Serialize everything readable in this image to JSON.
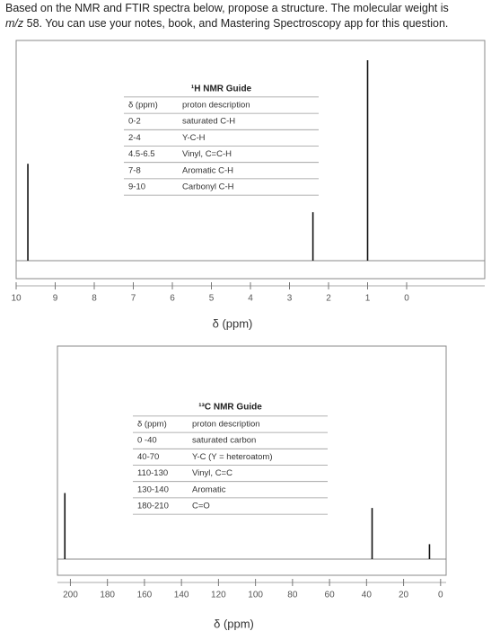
{
  "question": {
    "line1": "Based on the NMR and FTIR spectra below, propose a structure. The molecular weight is",
    "mz": "m/z",
    "line2": "58. You can use your notes, book, and Mastering Spectroscopy app for this question."
  },
  "spectra": [
    {
      "xlim": [
        10,
        -2
      ],
      "xticks": [
        10,
        9,
        8,
        7,
        6,
        5,
        4,
        3,
        2,
        1,
        0
      ],
      "xlabel": "δ (ppm)",
      "ylim": [
        0,
        1
      ],
      "peaks": [
        {
          "x": 9.7,
          "height": 0.44
        },
        {
          "x": 2.4,
          "height": 0.22
        },
        {
          "x": 1.0,
          "height": 0.91
        }
      ],
      "guide": {
        "title": "¹H NMR Guide",
        "header": [
          "δ (ppm)",
          "proton description"
        ],
        "rows": [
          [
            "0-2",
            "saturated C-H"
          ],
          [
            "2-4",
            "Y-C-H"
          ],
          [
            "4.5-6.5",
            "Vinyl, C=C-H"
          ],
          [
            "7-8",
            "Aromatic C-H"
          ],
          [
            "9-10",
            "Carbonyl C-H"
          ]
        ]
      }
    },
    {
      "xlim": [
        207,
        -3
      ],
      "xticks": [
        200,
        180,
        160,
        140,
        120,
        100,
        80,
        60,
        40,
        20,
        0
      ],
      "xlabel": "δ (ppm)",
      "ylim": [
        0,
        1
      ],
      "peaks": [
        {
          "x": 203,
          "height": 0.31
        },
        {
          "x": 37,
          "height": 0.24
        },
        {
          "x": 6,
          "height": 0.07
        }
      ],
      "guide": {
        "title": "¹³C NMR Guide",
        "header": [
          "δ (ppm)",
          "proton description"
        ],
        "rows": [
          [
            "0 -40",
            "saturated carbon"
          ],
          [
            "40-70",
            "Y-C (Y = heteroatom)"
          ],
          [
            "110-130",
            "Vinyl, C=C"
          ],
          [
            "130-140",
            "Aromatic"
          ],
          [
            "180-210",
            "C=O"
          ]
        ]
      }
    }
  ]
}
